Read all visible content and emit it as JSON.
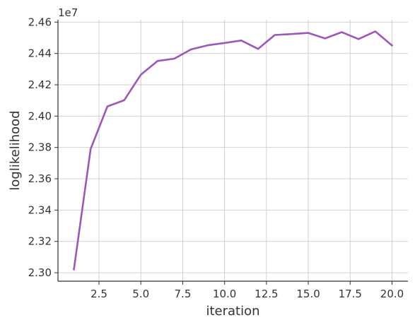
{
  "chart_data": {
    "type": "line",
    "title": "",
    "xlabel": "iteration",
    "ylabel": "loglikelihood",
    "y_offset_label": "1e7",
    "xlim": [
      0.05,
      20.95
    ],
    "ylim": [
      2.2946,
      2.4615
    ],
    "x_ticks": [
      2.5,
      5.0,
      7.5,
      10.0,
      12.5,
      15.0,
      17.5,
      20.0
    ],
    "x_tick_labels": [
      "2.5",
      "5.0",
      "7.5",
      "10.0",
      "12.5",
      "15.0",
      "17.5",
      "20.0"
    ],
    "y_ticks": [
      2.3,
      2.32,
      2.34,
      2.36,
      2.38,
      2.4,
      2.42,
      2.44,
      2.46
    ],
    "y_tick_labels": [
      "2.30",
      "2.32",
      "2.34",
      "2.36",
      "2.38",
      "2.40",
      "2.42",
      "2.44",
      "2.46"
    ],
    "grid": true,
    "series": [
      {
        "color": "#9b59b6",
        "x": [
          1,
          2,
          3,
          4,
          5,
          6,
          7,
          8,
          9,
          10,
          11,
          12,
          13,
          14,
          15,
          16,
          17,
          18,
          19,
          20
        ],
        "y": [
          2.302,
          2.379,
          2.4062,
          2.4101,
          2.4264,
          2.4352,
          2.4367,
          2.4426,
          2.4452,
          2.4467,
          2.4483,
          2.4429,
          2.4518,
          2.4524,
          2.4531,
          2.4496,
          2.4536,
          2.4492,
          2.4541,
          2.4451
        ]
      }
    ]
  }
}
